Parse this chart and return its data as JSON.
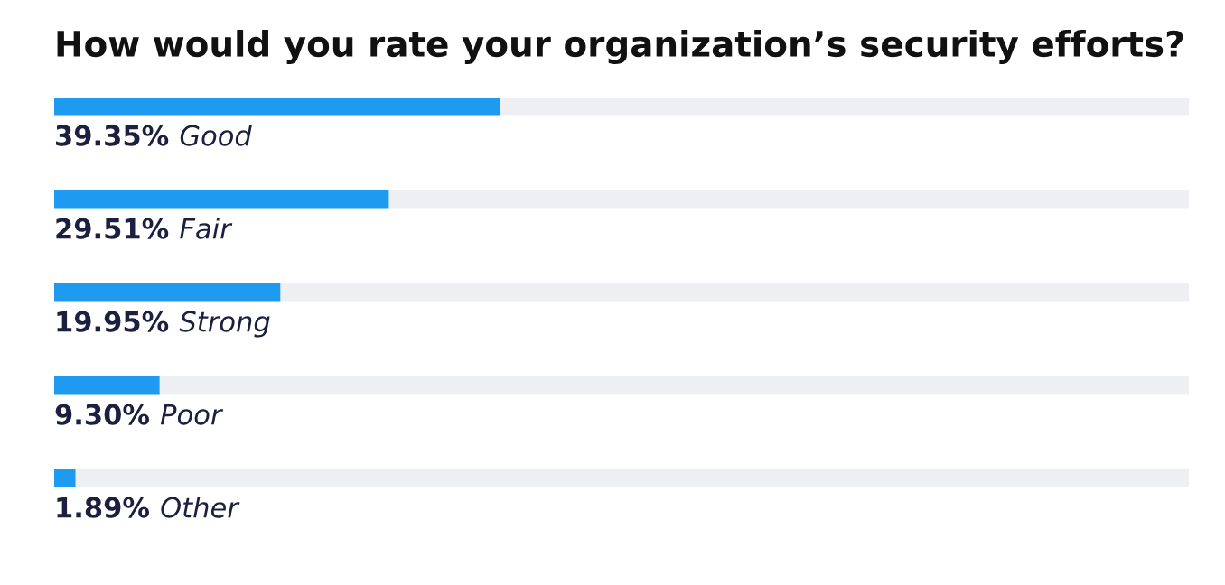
{
  "chart_data": {
    "type": "bar",
    "orientation": "horizontal",
    "stacked": true,
    "title": "How would you rate your organization’s security efforts?",
    "categories": [
      "Good",
      "Fair",
      "Strong",
      "Poor",
      "Other"
    ],
    "series": [
      {
        "color": "#1e9bf0",
        "values": [
          39.35,
          29.51,
          19.95,
          9.3,
          1.89
        ],
        "value_labels": [
          "39.35%",
          "29.51%",
          "19.95%",
          "9.30%",
          "1.89%"
        ]
      },
      {
        "color": "#eeeff2",
        "values": [
          60.65,
          70.49,
          80.05,
          90.7,
          98.11
        ]
      }
    ],
    "xlim": [
      0,
      100
    ]
  }
}
